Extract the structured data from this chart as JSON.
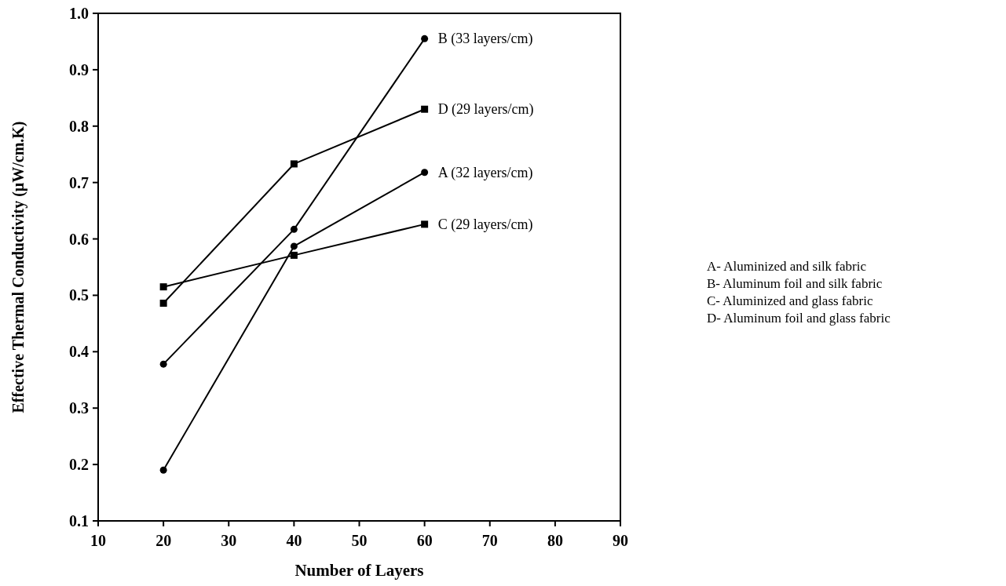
{
  "chart_data": {
    "type": "line",
    "xlabel": "Number of Layers",
    "ylabel": "Effective Thermal Conductivity (μW/cm.K)",
    "x": [
      20,
      40,
      60
    ],
    "series": [
      {
        "name": "A (32 layers/cm)",
        "color": "#000000",
        "marker": "circle",
        "values": [
          0.19,
          0.587,
          0.718
        ]
      },
      {
        "name": "B (33 layers/cm)",
        "color": "#000000",
        "marker": "circle",
        "values": [
          0.378,
          0.617,
          0.955
        ]
      },
      {
        "name": "C (29 layers/cm)",
        "color": "#000000",
        "marker": "square",
        "values": [
          0.515,
          0.571,
          0.626
        ]
      },
      {
        "name": "D (29 layers/cm)",
        "color": "#000000",
        "marker": "square",
        "values": [
          0.486,
          0.733,
          0.83
        ]
      }
    ],
    "xlim": [
      10,
      90
    ],
    "xticks": [
      10,
      20,
      30,
      40,
      50,
      60,
      70,
      80,
      90
    ],
    "ylim": [
      0.1,
      1.0
    ],
    "yticks": [
      0.1,
      0.2,
      0.3,
      0.4,
      0.5,
      0.6,
      0.7,
      0.8,
      0.9,
      {
        "value": 1,
        "label": "1.0"
      }
    ],
    "annotations": [
      "A- Aluminized and silk fabric",
      "B- Aluminum foil and silk fabric",
      "C- Aluminized and glass fabric",
      "D- Aluminum foil and glass fabric"
    ],
    "grid": false
  }
}
